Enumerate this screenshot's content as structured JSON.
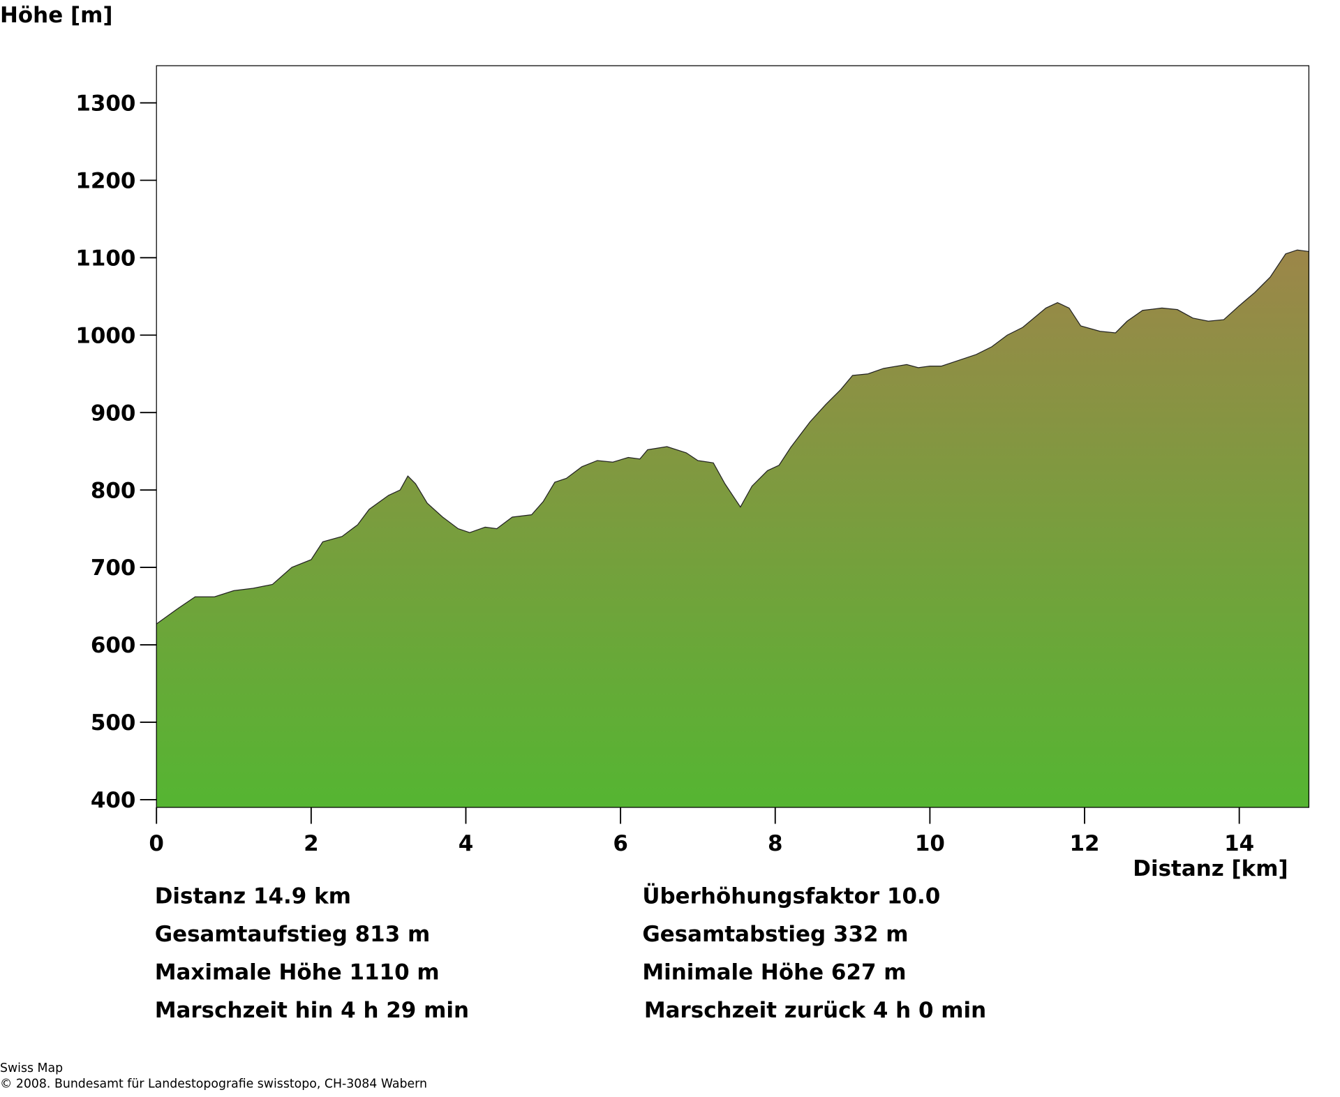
{
  "chart_data": {
    "type": "area",
    "ylabel": "Höhe [m]",
    "xlabel": "Distanz [km]",
    "x": [
      0,
      0.25,
      0.5,
      0.75,
      1.0,
      1.25,
      1.5,
      1.75,
      2.0,
      2.15,
      2.4,
      2.6,
      2.75,
      3.0,
      3.15,
      3.25,
      3.35,
      3.5,
      3.7,
      3.9,
      4.05,
      4.25,
      4.4,
      4.6,
      4.85,
      5.0,
      5.15,
      5.3,
      5.5,
      5.7,
      5.9,
      6.1,
      6.25,
      6.35,
      6.6,
      6.85,
      7.0,
      7.2,
      7.35,
      7.55,
      7.7,
      7.9,
      8.05,
      8.2,
      8.45,
      8.65,
      8.85,
      9.0,
      9.2,
      9.4,
      9.7,
      9.85,
      10.0,
      10.15,
      10.3,
      10.6,
      10.8,
      11.0,
      11.2,
      11.5,
      11.65,
      11.8,
      11.95,
      12.2,
      12.4,
      12.55,
      12.75,
      13.0,
      13.2,
      13.4,
      13.6,
      13.8,
      14.0,
      14.2,
      14.4,
      14.6,
      14.75,
      14.9
    ],
    "values": [
      627,
      645,
      662,
      662,
      670,
      673,
      678,
      700,
      710,
      733,
      740,
      755,
      775,
      793,
      800,
      818,
      808,
      783,
      765,
      750,
      745,
      752,
      750,
      765,
      768,
      785,
      810,
      815,
      830,
      838,
      836,
      842,
      840,
      852,
      856,
      848,
      838,
      835,
      808,
      778,
      805,
      825,
      832,
      855,
      888,
      910,
      930,
      948,
      950,
      957,
      962,
      958,
      960,
      960,
      965,
      975,
      985,
      1000,
      1010,
      1035,
      1042,
      1035,
      1012,
      1005,
      1003,
      1018,
      1032,
      1035,
      1033,
      1022,
      1018,
      1020,
      1038,
      1055,
      1075,
      1105,
      1110,
      1108
    ],
    "xlim": [
      0,
      14.9
    ],
    "ylim": [
      390,
      1348
    ],
    "xticks": [
      0,
      2,
      4,
      6,
      8,
      10,
      12,
      14
    ],
    "yticks": [
      400,
      500,
      600,
      700,
      800,
      900,
      1000,
      1100,
      1200,
      1300
    ],
    "color_top": "#9c8649",
    "color_bottom": "#55b532"
  },
  "stats_left": [
    "Distanz 14.9 km",
    "Gesamtaufstieg  813 m",
    "Maximale Höhe  1110 m",
    "Marschzeit hin  4 h 29 min"
  ],
  "stats_right": [
    "Überhöhungsfaktor 10.0",
    "Gesamtabstieg  332 m",
    "Minimale Höhe  627 m",
    "Marschzeit zurück  4 h 0 min"
  ],
  "footer": [
    "Swiss Map",
    "© 2008. Bundesamt für Landestopografie swisstopo, CH-3084 Wabern"
  ]
}
